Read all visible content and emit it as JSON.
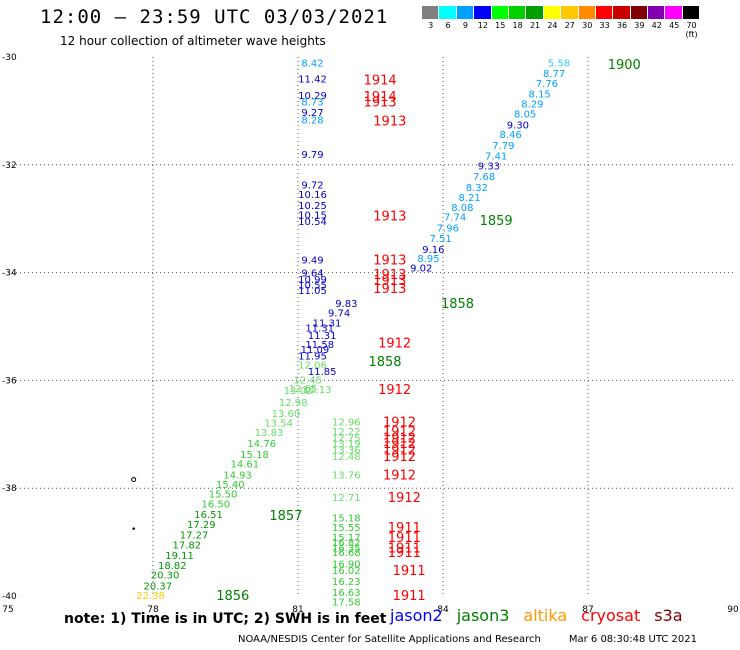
{
  "title": "12:00 – 23:59 UTC 03/03/2021",
  "subtitle": "12 hour collection of altimeter wave heights",
  "color_scale": {
    "colors": [
      "#7f7f7f",
      "#00ffff",
      "#00a0ff",
      "#0000ff",
      "#00ff00",
      "#00d000",
      "#00a000",
      "#ffff00",
      "#ffc800",
      "#ff8c00",
      "#ff0000",
      "#c80000",
      "#800000",
      "#8000b0",
      "#ff00ff",
      "#000000"
    ],
    "labels": [
      "",
      "3",
      "6",
      "9",
      "12",
      "15",
      "18",
      "21",
      "24",
      "27",
      "30",
      "33",
      "36",
      "39",
      "42",
      "45",
      "70 (ft)"
    ]
  },
  "note": "note: 1) Time is in UTC; 2) SWH is in feet",
  "satellites": [
    {
      "name": "jason2",
      "color": "#0000ff"
    },
    {
      "name": "jason3",
      "color": "#008000"
    },
    {
      "name": "altika",
      "color": "#ff9900"
    },
    {
      "name": "cryosat",
      "color": "#ff0000"
    },
    {
      "name": "s3a",
      "color": "#800000"
    }
  ],
  "credit": {
    "org": "NOAA/NESDIS Center for Satellite Applications and Research",
    "timestamp": "Mar  6 08:30:48 UTC 2021"
  },
  "chart_data": {
    "type": "scatter",
    "title": "12:00 – 23:59 UTC 03/03/2021",
    "subtitle": "12 hour collection of altimeter wave heights",
    "xlabel": "",
    "ylabel": "",
    "xlim": [
      75,
      90
    ],
    "ylim": [
      -40,
      -30
    ],
    "x_ticks": [
      75,
      78,
      81,
      84,
      87,
      90
    ],
    "y_ticks": [
      -30,
      -32,
      -34,
      -36,
      -38,
      -40
    ],
    "grid": true,
    "series": [
      {
        "name": "pass 1900",
        "color": "#1e90ff",
        "points": [
          {
            "x": 86.4,
            "y": -30.12,
            "v": "5.58",
            "c": "#33ccff"
          },
          {
            "x": 86.3,
            "y": -30.32,
            "v": "8.77",
            "c": "#00a0ff"
          },
          {
            "x": 86.15,
            "y": -30.5,
            "v": "7.76",
            "c": "#00a0ff"
          },
          {
            "x": 86.0,
            "y": -30.7,
            "v": "8.15",
            "c": "#00a0ff"
          },
          {
            "x": 85.85,
            "y": -30.88,
            "v": "8.29",
            "c": "#00a0ff"
          },
          {
            "x": 85.7,
            "y": -31.07,
            "v": "8.05",
            "c": "#00a0ff"
          },
          {
            "x": 85.55,
            "y": -31.27,
            "v": "9.30",
            "c": "#0000cc"
          },
          {
            "x": 85.4,
            "y": -31.45,
            "v": "8.46",
            "c": "#00a0ff"
          },
          {
            "x": 85.25,
            "y": -31.65,
            "v": "7.79",
            "c": "#00a0ff"
          },
          {
            "x": 85.1,
            "y": -31.85,
            "v": "7.41",
            "c": "#00a0ff"
          },
          {
            "x": 84.95,
            "y": -32.03,
            "v": "9.33",
            "c": "#0000cc"
          },
          {
            "x": 84.85,
            "y": -32.23,
            "v": "7.68",
            "c": "#00a0ff"
          },
          {
            "x": 84.7,
            "y": -32.43,
            "v": "8.32",
            "c": "#00a0ff"
          },
          {
            "x": 84.55,
            "y": -32.62,
            "v": "8.21",
            "c": "#00a0ff"
          },
          {
            "x": 84.4,
            "y": -32.8,
            "v": "8.08",
            "c": "#00a0ff"
          },
          {
            "x": 84.25,
            "y": -32.98,
            "v": "7.74",
            "c": "#00a0ff"
          },
          {
            "x": 84.1,
            "y": -33.18,
            "v": "7.96",
            "c": "#00a0ff"
          },
          {
            "x": 83.95,
            "y": -33.38,
            "v": "7.51",
            "c": "#00a0ff"
          },
          {
            "x": 83.8,
            "y": -33.58,
            "v": "9.16",
            "c": "#0000cc"
          },
          {
            "x": 83.7,
            "y": -33.75,
            "v": "8.95",
            "c": "#00a0ff"
          },
          {
            "x": 83.55,
            "y": -33.92,
            "v": "9.02",
            "c": "#0000cc"
          }
        ]
      },
      {
        "name": "pass 1914/1913",
        "color": "#0000ff",
        "points": [
          {
            "x": 81.3,
            "y": -30.12,
            "v": "8.42",
            "c": "#00a0ff"
          },
          {
            "x": 81.3,
            "y": -30.42,
            "v": "11.42",
            "c": "#0000cc"
          },
          {
            "x": 81.3,
            "y": -30.72,
            "v": "10.29",
            "c": "#0000cc"
          },
          {
            "x": 81.3,
            "y": -30.84,
            "v": "8.73",
            "c": "#00a0ff"
          },
          {
            "x": 81.3,
            "y": -31.04,
            "v": "9.27",
            "c": "#0000cc"
          },
          {
            "x": 81.3,
            "y": -31.18,
            "v": "8.28",
            "c": "#00a0ff"
          },
          {
            "x": 81.3,
            "y": -31.82,
            "v": "9.79",
            "c": "#0000cc"
          },
          {
            "x": 81.3,
            "y": -32.38,
            "v": "9.72",
            "c": "#0000cc"
          },
          {
            "x": 81.3,
            "y": -32.56,
            "v": "10.16",
            "c": "#0000cc"
          },
          {
            "x": 81.3,
            "y": -32.76,
            "v": "10.25",
            "c": "#0000cc"
          },
          {
            "x": 81.3,
            "y": -32.94,
            "v": "10.15",
            "c": "#0000cc"
          },
          {
            "x": 81.3,
            "y": -33.06,
            "v": "10.54",
            "c": "#0000cc"
          },
          {
            "x": 81.3,
            "y": -33.78,
            "v": "9.49",
            "c": "#0000cc"
          },
          {
            "x": 81.3,
            "y": -34.02,
            "v": "9.64",
            "c": "#0000cc"
          },
          {
            "x": 81.3,
            "y": -34.14,
            "v": "10.99",
            "c": "#0000cc"
          },
          {
            "x": 81.3,
            "y": -34.24,
            "v": "10.55",
            "c": "#0000cc"
          },
          {
            "x": 81.3,
            "y": -34.34,
            "v": "11.05",
            "c": "#0000cc"
          }
        ]
      },
      {
        "name": "pass 1858/1913 track",
        "color": "#0000ff",
        "points": [
          {
            "x": 82.0,
            "y": -34.58,
            "v": "9.83",
            "c": "#0000cc"
          },
          {
            "x": 81.85,
            "y": -34.76,
            "v": "9.74",
            "c": "#0000cc"
          },
          {
            "x": 81.6,
            "y": -34.94,
            "v": "11.31",
            "c": "#0000cc"
          },
          {
            "x": 81.45,
            "y": -35.04,
            "v": "11.31",
            "c": "#0000cc"
          },
          {
            "x": 81.5,
            "y": -35.18,
            "v": "11.31",
            "c": "#0000cc"
          },
          {
            "x": 81.45,
            "y": -35.34,
            "v": "11.58",
            "c": "#0000cc"
          },
          {
            "x": 81.35,
            "y": -35.44,
            "v": "11.09",
            "c": "#0000cc"
          },
          {
            "x": 81.3,
            "y": -35.56,
            "v": "11.95",
            "c": "#0000cc"
          },
          {
            "x": 81.3,
            "y": -35.72,
            "v": "12.06",
            "c": "#66dd66"
          },
          {
            "x": 81.5,
            "y": -35.84,
            "v": "11.85",
            "c": "#0000cc"
          },
          {
            "x": 81.2,
            "y": -36.0,
            "v": "12.45",
            "c": "#66dd66"
          },
          {
            "x": 81.1,
            "y": -36.16,
            "v": "12.65",
            "c": "#66dd66"
          },
          {
            "x": 81.4,
            "y": -36.18,
            "v": "12.13",
            "c": "#66dd66"
          },
          {
            "x": 81.0,
            "y": -36.2,
            "v": "13.02",
            "c": "#66dd66"
          },
          {
            "x": 80.9,
            "y": -36.42,
            "v": "12.98",
            "c": "#66dd66"
          },
          {
            "x": 80.75,
            "y": -36.62,
            "v": "13.60",
            "c": "#66dd66"
          },
          {
            "x": 80.6,
            "y": -36.8,
            "v": "13.54",
            "c": "#66dd66"
          },
          {
            "x": 80.4,
            "y": -36.98,
            "v": "13.83",
            "c": "#66dd66"
          },
          {
            "x": 80.25,
            "y": -37.18,
            "v": "14.76",
            "c": "#33cc33"
          },
          {
            "x": 80.1,
            "y": -37.38,
            "v": "15.18",
            "c": "#33cc33"
          },
          {
            "x": 79.9,
            "y": -37.56,
            "v": "14.61",
            "c": "#33cc33"
          },
          {
            "x": 79.75,
            "y": -37.76,
            "v": "14.93",
            "c": "#33cc33"
          },
          {
            "x": 79.6,
            "y": -37.94,
            "v": "15.40",
            "c": "#33cc33"
          },
          {
            "x": 79.45,
            "y": -38.12,
            "v": "15.50",
            "c": "#33cc33"
          },
          {
            "x": 79.3,
            "y": -38.3,
            "v": "16.50",
            "c": "#33cc33"
          },
          {
            "x": 79.15,
            "y": -38.5,
            "v": "16.51",
            "c": "#009900"
          },
          {
            "x": 79.0,
            "y": -38.68,
            "v": "17.29",
            "c": "#009900"
          },
          {
            "x": 78.85,
            "y": -38.88,
            "v": "17.27",
            "c": "#009900"
          },
          {
            "x": 78.7,
            "y": -39.06,
            "v": "17.82",
            "c": "#009900"
          },
          {
            "x": 78.55,
            "y": -39.26,
            "v": "19.11",
            "c": "#009900"
          },
          {
            "x": 78.4,
            "y": -39.44,
            "v": "18.82",
            "c": "#009900"
          },
          {
            "x": 78.25,
            "y": -39.62,
            "v": "20.30",
            "c": "#009900"
          },
          {
            "x": 78.1,
            "y": -39.82,
            "v": "20.37",
            "c": "#009900"
          },
          {
            "x": 77.95,
            "y": -40.0,
            "v": "22.38",
            "c": "#ffcc00"
          }
        ]
      },
      {
        "name": "pass 1912/1911",
        "color": "#66dd66",
        "points": [
          {
            "x": 82.0,
            "y": -36.78,
            "v": "12.96",
            "c": "#66dd66"
          },
          {
            "x": 82.0,
            "y": -36.96,
            "v": "12.22",
            "c": "#66dd66"
          },
          {
            "x": 82.0,
            "y": -37.08,
            "v": "12.75",
            "c": "#66dd66"
          },
          {
            "x": 82.0,
            "y": -37.18,
            "v": "13.19",
            "c": "#66dd66"
          },
          {
            "x": 82.0,
            "y": -37.3,
            "v": "13.36",
            "c": "#66dd66"
          },
          {
            "x": 82.0,
            "y": -37.42,
            "v": "12.48",
            "c": "#66dd66"
          },
          {
            "x": 82.0,
            "y": -37.76,
            "v": "13.76",
            "c": "#66dd66"
          },
          {
            "x": 82.0,
            "y": -38.18,
            "v": "12.71",
            "c": "#66dd66"
          },
          {
            "x": 82.0,
            "y": -38.56,
            "v": "15.18",
            "c": "#33cc33"
          },
          {
            "x": 82.0,
            "y": -38.74,
            "v": "15.55",
            "c": "#33cc33"
          },
          {
            "x": 82.0,
            "y": -38.92,
            "v": "15.17",
            "c": "#33cc33"
          },
          {
            "x": 82.0,
            "y": -39.02,
            "v": "16.82",
            "c": "#33cc33"
          },
          {
            "x": 82.0,
            "y": -39.12,
            "v": "16.35",
            "c": "#33cc33"
          },
          {
            "x": 82.0,
            "y": -39.2,
            "v": "16.68",
            "c": "#33cc33"
          },
          {
            "x": 82.0,
            "y": -39.42,
            "v": "16.90",
            "c": "#33cc33"
          },
          {
            "x": 82.0,
            "y": -39.54,
            "v": "16.02",
            "c": "#33cc33"
          },
          {
            "x": 82.0,
            "y": -39.74,
            "v": "16.23",
            "c": "#33cc33"
          },
          {
            "x": 82.0,
            "y": -39.94,
            "v": "16.63",
            "c": "#33cc33"
          },
          {
            "x": 82.0,
            "y": -40.12,
            "v": "17.58",
            "c": "#33cc33"
          }
        ]
      }
    ],
    "pass_labels": [
      {
        "text": "1900",
        "x": 87.75,
        "y": -30.15,
        "c": "#008000"
      },
      {
        "text": "1914",
        "x": 82.7,
        "y": -30.44,
        "c": "#ff0000"
      },
      {
        "text": "1914",
        "x": 82.7,
        "y": -30.74,
        "c": "#ff0000"
      },
      {
        "text": "1913",
        "x": 82.7,
        "y": -30.84,
        "c": "#ff0000"
      },
      {
        "text": "1913",
        "x": 82.9,
        "y": -31.2,
        "c": "#ff0000"
      },
      {
        "text": "1913",
        "x": 82.9,
        "y": -32.96,
        "c": "#ff0000"
      },
      {
        "text": "1859",
        "x": 85.1,
        "y": -33.04,
        "c": "#008000"
      },
      {
        "text": "1913",
        "x": 82.9,
        "y": -33.78,
        "c": "#ff0000"
      },
      {
        "text": "1913",
        "x": 82.9,
        "y": -34.04,
        "c": "#ff0000"
      },
      {
        "text": "1913",
        "x": 82.9,
        "y": -34.16,
        "c": "#ff0000"
      },
      {
        "text": "1913",
        "x": 82.9,
        "y": -34.3,
        "c": "#ff0000"
      },
      {
        "text": "1858",
        "x": 84.3,
        "y": -34.58,
        "c": "#008000"
      },
      {
        "text": "1912",
        "x": 83.0,
        "y": -35.32,
        "c": "#ff0000"
      },
      {
        "text": "1858",
        "x": 82.8,
        "y": -35.66,
        "c": "#008000"
      },
      {
        "text": "1912",
        "x": 83.0,
        "y": -36.18,
        "c": "#ff0000"
      },
      {
        "text": "1912",
        "x": 83.1,
        "y": -36.78,
        "c": "#ff0000"
      },
      {
        "text": "1912",
        "x": 83.1,
        "y": -36.96,
        "c": "#ff0000"
      },
      {
        "text": "1912",
        "x": 83.1,
        "y": -37.08,
        "c": "#ff0000"
      },
      {
        "text": "1912",
        "x": 83.1,
        "y": -37.18,
        "c": "#ff0000"
      },
      {
        "text": "1912",
        "x": 83.1,
        "y": -37.3,
        "c": "#ff0000"
      },
      {
        "text": "1912",
        "x": 83.1,
        "y": -37.42,
        "c": "#ff0000"
      },
      {
        "text": "1912",
        "x": 83.1,
        "y": -37.76,
        "c": "#ff0000"
      },
      {
        "text": "1912",
        "x": 83.2,
        "y": -38.18,
        "c": "#ff0000"
      },
      {
        "text": "1857",
        "x": 80.75,
        "y": -38.52,
        "c": "#008000"
      },
      {
        "text": "1911",
        "x": 83.2,
        "y": -38.74,
        "c": "#ff0000"
      },
      {
        "text": "1911",
        "x": 83.2,
        "y": -38.92,
        "c": "#ff0000"
      },
      {
        "text": "1911",
        "x": 83.2,
        "y": -39.12,
        "c": "#ff0000"
      },
      {
        "text": "1911",
        "x": 83.2,
        "y": -39.2,
        "c": "#ff0000"
      },
      {
        "text": "1911",
        "x": 83.3,
        "y": -39.54,
        "c": "#ff0000"
      },
      {
        "text": "1911",
        "x": 83.3,
        "y": -40.0,
        "c": "#ff0000"
      },
      {
        "text": "1856",
        "x": 79.65,
        "y": -40.0,
        "c": "#008000"
      }
    ],
    "markers": [
      {
        "x": 77.6,
        "y": -37.84,
        "shape": "o"
      },
      {
        "x": 77.6,
        "y": -38.75,
        "shape": "dot"
      }
    ]
  }
}
